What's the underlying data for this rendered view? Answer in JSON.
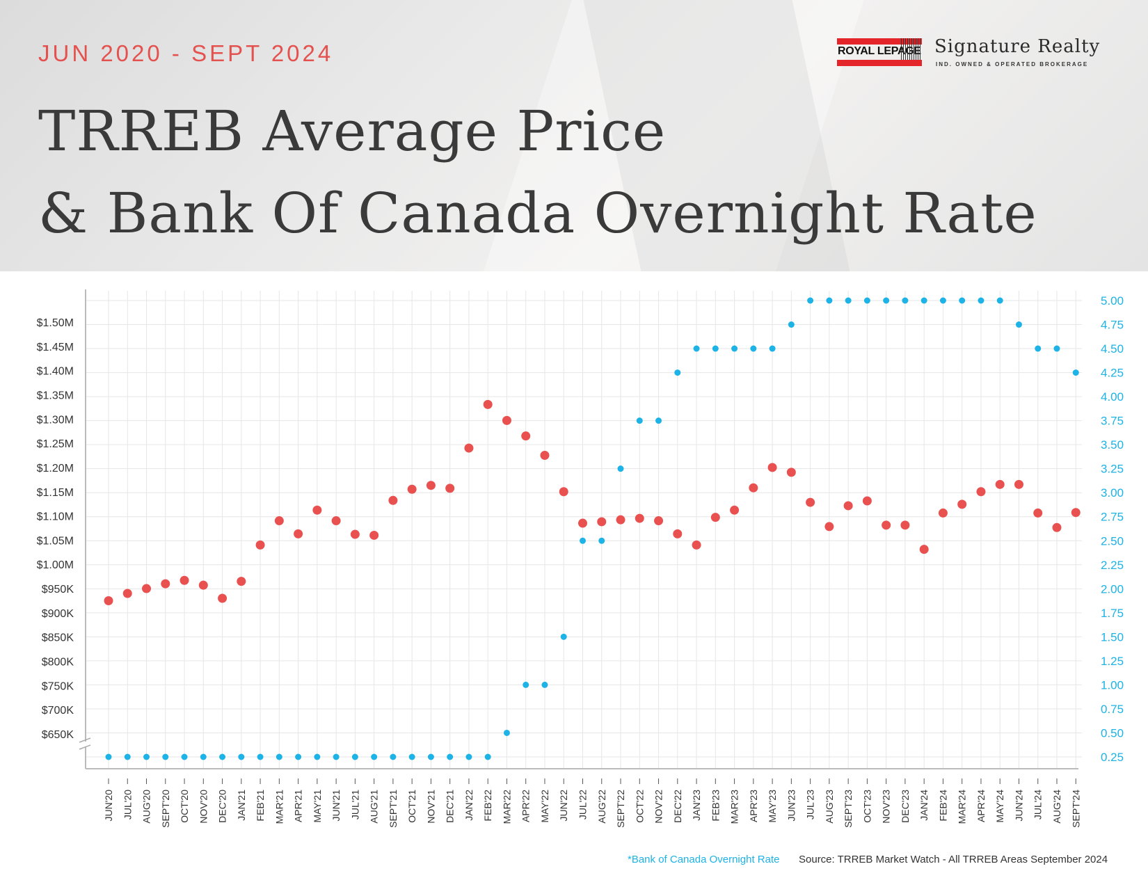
{
  "header": {
    "date_range": "JUN 2020 - SEPT 2024",
    "title_line1": "TRREB Average Price",
    "title_line2": "& Bank Of Canada Overnight Rate"
  },
  "logo": {
    "brand": "ROYAL LEPAGE",
    "name": "Signature Realty",
    "tagline": "IND. OWNED & OPERATED BROKERAGE"
  },
  "footnotes": {
    "rate_note": "*Bank of Canada Overnight Rate",
    "source": "Source: TRREB Market Watch - All TRREB Areas September 2024"
  },
  "colors": {
    "price": "#e8514f",
    "rate": "#1db3e6",
    "grid": "#e6e6e6",
    "axis_text": "#333333",
    "rate_axis_text": "#1db3e6"
  },
  "chart_data": {
    "type": "scatter",
    "categories": [
      "JUN'20",
      "JUL'20",
      "AUG'20",
      "SEPT'20",
      "OCT'20",
      "NOV'20",
      "DEC'20",
      "JAN'21",
      "FEB'21",
      "MAR'21",
      "APR'21",
      "MAY'21",
      "JUN'21",
      "JUL'21",
      "AUG'21",
      "SEPT'21",
      "OCT'21",
      "NOV'21",
      "DEC'21",
      "JAN'22",
      "FEB'22",
      "MAR'22",
      "APR'22",
      "MAY'22",
      "JUN'22",
      "JUL'22",
      "AUG'22",
      "SEPT'22",
      "OCT'22",
      "NOV'22",
      "DEC'22",
      "JAN'23",
      "FEB'23",
      "MAR'23",
      "APR'23",
      "MAY'23",
      "JUN'23",
      "JUL'23",
      "AUG'23",
      "SEPT'23",
      "OCT'23",
      "NOV'23",
      "DEC'23",
      "JAN'24",
      "FEB'24",
      "MAR'24",
      "APR'24",
      "MAY'24",
      "JUN'24",
      "JUL'24",
      "AUG'24",
      "SEPT'24"
    ],
    "series": [
      {
        "axis": "left",
        "color": "#e8514f",
        "values": [
          925000,
          940000,
          950000,
          960000,
          967000,
          957000,
          930000,
          965000,
          1040000,
          1090000,
          1063000,
          1112000,
          1090000,
          1062000,
          1060000,
          1132000,
          1155000,
          1163000,
          1157000,
          1240000,
          1330000,
          1297000,
          1265000,
          1225000,
          1150000,
          1085000,
          1088000,
          1092000,
          1095000,
          1090000,
          1063000,
          1040000,
          1097000,
          1112000,
          1158000,
          1200000,
          1190000,
          1128000,
          1078000,
          1121000,
          1131000,
          1081000,
          1081000,
          1031000,
          1106000,
          1124000,
          1150000,
          1165000,
          1165000,
          1106000,
          1076000,
          1107000
        ]
      },
      {
        "axis": "right",
        "color": "#1db3e6",
        "values": [
          0.25,
          0.25,
          0.25,
          0.25,
          0.25,
          0.25,
          0.25,
          0.25,
          0.25,
          0.25,
          0.25,
          0.25,
          0.25,
          0.25,
          0.25,
          0.25,
          0.25,
          0.25,
          0.25,
          0.25,
          0.25,
          0.5,
          1.0,
          1.0,
          1.5,
          2.5,
          2.5,
          3.25,
          3.75,
          3.75,
          4.25,
          4.5,
          4.5,
          4.5,
          4.5,
          4.5,
          4.75,
          5.0,
          5.0,
          5.0,
          5.0,
          5.0,
          5.0,
          5.0,
          5.0,
          5.0,
          5.0,
          5.0,
          4.75,
          4.5,
          4.5,
          4.25
        ]
      }
    ],
    "y_left_ticks": [
      "$650K",
      "$700K",
      "$750K",
      "$800K",
      "$850K",
      "$900K",
      "$950K",
      "$1.00M",
      "$1.05M",
      "$1.10M",
      "$1.15M",
      "$1.20M",
      "$1.25M",
      "$1.30M",
      "$1.35M",
      "$1.40M",
      "$1.45M",
      "$1.50M"
    ],
    "y_left_tick_values": [
      650000,
      700000,
      750000,
      800000,
      850000,
      900000,
      950000,
      1000000,
      1050000,
      1100000,
      1150000,
      1200000,
      1250000,
      1300000,
      1350000,
      1400000,
      1450000,
      1500000
    ],
    "ylim_left": [
      650000,
      1500000
    ],
    "y_right_ticks": [
      "0.25",
      "0.50",
      "0.75",
      "1.00",
      "1.25",
      "1.50",
      "1.75",
      "2.00",
      "2.25",
      "2.50",
      "2.75",
      "3.00",
      "3.25",
      "3.50",
      "3.75",
      "4.00",
      "4.25",
      "4.50",
      "4.75",
      "5.00"
    ],
    "y_right_tick_values": [
      0.25,
      0.5,
      0.75,
      1.0,
      1.25,
      1.5,
      1.75,
      2.0,
      2.25,
      2.5,
      2.75,
      3.0,
      3.25,
      3.5,
      3.75,
      4.0,
      4.25,
      4.5,
      4.75,
      5.0
    ],
    "ylim_right": [
      0.25,
      5.0
    ],
    "grid": true,
    "left_axis_break": true
  }
}
